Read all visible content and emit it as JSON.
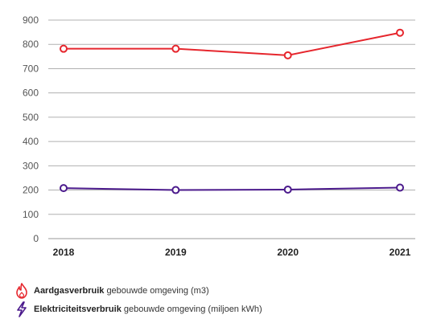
{
  "chart_data": {
    "type": "line",
    "categories": [
      "2018",
      "2019",
      "2020",
      "2021"
    ],
    "ylim": [
      0,
      900
    ],
    "yticks": [
      0,
      100,
      200,
      300,
      400,
      500,
      600,
      700,
      800,
      900
    ],
    "grid": true,
    "legend_position": "bottom-left",
    "series": [
      {
        "name": "Aardgasverbruik",
        "description": "gebouwde omgeving (m3)",
        "values": [
          782,
          782,
          755,
          848
        ],
        "color": "#e6262d",
        "icon": "flame-icon"
      },
      {
        "name": "Elektriciteitsverbruik",
        "description": "gebouwde omgeving (miljoen kWh)",
        "values": [
          208,
          200,
          202,
          210
        ],
        "color": "#4b1a8c",
        "icon": "lightning-icon"
      }
    ]
  }
}
